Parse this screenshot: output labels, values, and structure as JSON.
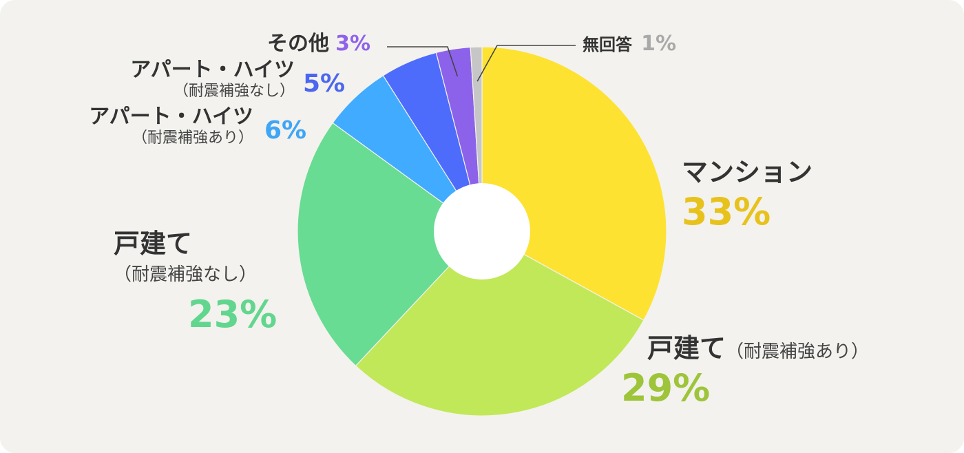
{
  "chart_data": {
    "type": "pie",
    "variant": "donut",
    "start_angle": "12 o'clock, clockwise",
    "slices": [
      {
        "label": "マンション",
        "sub": "",
        "value": 33,
        "pct_label": "33%",
        "color": "#fde232",
        "pct_color": "#e8c21c"
      },
      {
        "label": "戸建て",
        "sub": "（耐震補強あり）",
        "value": 29,
        "pct_label": "29%",
        "color": "#c1e858",
        "pct_color": "#9ec43a"
      },
      {
        "label": "戸建て",
        "sub": "（耐震補強なし）",
        "value": 23,
        "pct_label": "23%",
        "color": "#68dc92",
        "pct_color": "#62d68e"
      },
      {
        "label": "アパート・ハイツ",
        "sub": "（耐震補強あり）",
        "value": 6,
        "pct_label": "6%",
        "color": "#40abff",
        "pct_color": "#3fa5f5"
      },
      {
        "label": "アパート・ハイツ",
        "sub": "（耐震補強なし）",
        "value": 5,
        "pct_label": "5%",
        "color": "#4d6cfc",
        "pct_color": "#4b66ef"
      },
      {
        "label": "その他",
        "sub": "",
        "value": 3,
        "pct_label": "3%",
        "color": "#8c62ea",
        "pct_color": "#8f63e9"
      },
      {
        "label": "無回答",
        "sub": "",
        "value": 1,
        "pct_label": "1%",
        "color": "#c6c6c6",
        "pct_color": "#a9a9a9"
      }
    ]
  }
}
